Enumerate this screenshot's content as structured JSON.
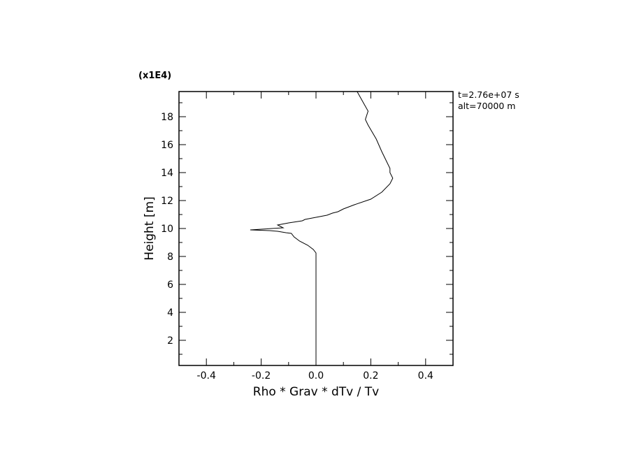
{
  "chart_data": {
    "type": "line",
    "title": "",
    "xlabel": "Rho * Grav * dTv / Tv",
    "ylabel": "Height [m]",
    "y_multiplier_label": "(x1E4)",
    "xlim": [
      -0.5,
      0.5
    ],
    "ylim": [
      0.2,
      19.8
    ],
    "x_ticks": [
      -0.4,
      -0.2,
      0.0,
      0.2,
      0.4
    ],
    "x_tick_labels": [
      "-0.4",
      "-0.2",
      "0.0",
      "0.2",
      "0.4"
    ],
    "y_ticks": [
      2,
      4,
      6,
      8,
      10,
      12,
      14,
      16,
      18
    ],
    "y_tick_labels": [
      "2",
      "4",
      "6",
      "8",
      "10",
      "12",
      "14",
      "16",
      "18"
    ],
    "grid": false,
    "annotations": [
      "t=2.76e+07 s",
      "alt=70000 m"
    ],
    "series": [
      {
        "x": [
          0.0,
          0.0,
          0.0,
          -0.01,
          -0.03,
          -0.06,
          -0.08,
          -0.09,
          -0.11,
          -0.14,
          -0.17,
          -0.24,
          -0.12,
          -0.14,
          -0.1,
          -0.05,
          -0.04,
          0.0,
          0.04,
          0.06,
          0.08,
          0.1,
          0.14,
          0.2,
          0.24,
          0.27,
          0.28,
          0.27,
          0.27,
          0.26,
          0.24,
          0.22,
          0.19,
          0.18,
          0.19,
          0.17,
          0.15
        ],
        "y": [
          0.2,
          2.0,
          8.25,
          8.5,
          8.8,
          9.1,
          9.4,
          9.65,
          9.7,
          9.8,
          9.85,
          9.9,
          10.05,
          10.25,
          10.4,
          10.55,
          10.65,
          10.8,
          10.95,
          11.1,
          11.2,
          11.4,
          11.7,
          12.1,
          12.6,
          13.2,
          13.6,
          14.0,
          14.3,
          14.7,
          15.5,
          16.4,
          17.4,
          17.8,
          18.4,
          19.1,
          19.8
        ]
      }
    ]
  }
}
